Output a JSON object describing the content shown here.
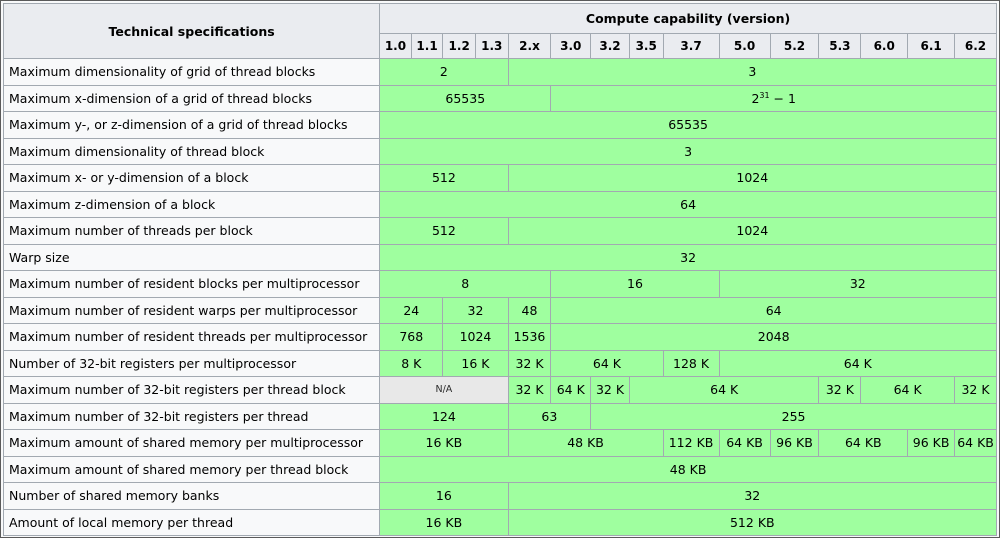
{
  "header": {
    "spec_title": "Technical specifications",
    "group_title": "Compute capability (version)",
    "versions": [
      "1.0",
      "1.1",
      "1.2",
      "1.3",
      "2.x",
      "3.0",
      "3.2",
      "3.5",
      "3.7",
      "5.0",
      "5.2",
      "5.3",
      "6.0",
      "6.1",
      "6.2"
    ]
  },
  "rows": [
    {
      "label": "Maximum dimensionality of grid of thread blocks",
      "cells": [
        {
          "span": 4,
          "text": "2"
        },
        {
          "span": 11,
          "text": "3"
        }
      ]
    },
    {
      "label": "Maximum x-dimension of a grid of thread blocks",
      "cells": [
        {
          "span": 5,
          "text": "65535"
        },
        {
          "span": 10,
          "base": "2",
          "sup": "31",
          "suffix": " − 1"
        }
      ]
    },
    {
      "label": "Maximum y-, or z-dimension of a grid of thread blocks",
      "cells": [
        {
          "span": 15,
          "text": "65535"
        }
      ]
    },
    {
      "label": "Maximum dimensionality of thread block",
      "cells": [
        {
          "span": 15,
          "text": "3"
        }
      ]
    },
    {
      "label": "Maximum x- or y-dimension of a block",
      "cells": [
        {
          "span": 4,
          "text": "512"
        },
        {
          "span": 11,
          "text": "1024"
        }
      ]
    },
    {
      "label": "Maximum z-dimension of a block",
      "cells": [
        {
          "span": 15,
          "text": "64"
        }
      ]
    },
    {
      "label": "Maximum number of threads per block",
      "cells": [
        {
          "span": 4,
          "text": "512"
        },
        {
          "span": 11,
          "text": "1024"
        }
      ]
    },
    {
      "label": "Warp size",
      "cells": [
        {
          "span": 15,
          "text": "32"
        }
      ]
    },
    {
      "label": "Maximum number of resident blocks per multiprocessor",
      "cells": [
        {
          "span": 5,
          "text": "8"
        },
        {
          "span": 4,
          "text": "16"
        },
        {
          "span": 6,
          "text": "32"
        }
      ]
    },
    {
      "label": "Maximum number of resident warps per multiprocessor",
      "cells": [
        {
          "span": 2,
          "text": "24"
        },
        {
          "span": 2,
          "text": "32"
        },
        {
          "span": 1,
          "text": "48"
        },
        {
          "span": 10,
          "text": "64"
        }
      ]
    },
    {
      "label": "Maximum number of resident threads per multiprocessor",
      "cells": [
        {
          "span": 2,
          "text": "768"
        },
        {
          "span": 2,
          "text": "1024"
        },
        {
          "span": 1,
          "text": "1536"
        },
        {
          "span": 10,
          "text": "2048"
        }
      ]
    },
    {
      "label": "Number of 32-bit registers per multiprocessor",
      "cells": [
        {
          "span": 2,
          "text": "8 K"
        },
        {
          "span": 2,
          "text": "16 K"
        },
        {
          "span": 1,
          "text": "32 K"
        },
        {
          "span": 3,
          "text": "64 K"
        },
        {
          "span": 1,
          "text": "128 K"
        },
        {
          "span": 6,
          "text": "64 K"
        }
      ]
    },
    {
      "label": "Maximum number of 32-bit registers per thread block",
      "cells": [
        {
          "span": 4,
          "text": "N/A",
          "na": true
        },
        {
          "span": 1,
          "text": "32 K"
        },
        {
          "span": 1,
          "text": "64 K"
        },
        {
          "span": 1,
          "text": "32 K"
        },
        {
          "span": 4,
          "text": "64 K"
        },
        {
          "span": 1,
          "text": "32 K"
        },
        {
          "span": 2,
          "text": "64 K"
        },
        {
          "span": 1,
          "text": "32 K"
        }
      ]
    },
    {
      "label": "Maximum number of 32-bit registers per thread",
      "cells": [
        {
          "span": 4,
          "text": "124"
        },
        {
          "span": 2,
          "text": "63"
        },
        {
          "span": 9,
          "text": "255"
        }
      ]
    },
    {
      "label": "Maximum amount of shared memory per multiprocessor",
      "cells": [
        {
          "span": 4,
          "text": "16 KB"
        },
        {
          "span": 4,
          "text": "48 KB"
        },
        {
          "span": 1,
          "text": "112 KB"
        },
        {
          "span": 1,
          "text": "64 KB"
        },
        {
          "span": 1,
          "text": "96 KB"
        },
        {
          "span": 2,
          "text": "64 KB"
        },
        {
          "span": 1,
          "text": "96 KB"
        },
        {
          "span": 1,
          "text": "64 KB"
        }
      ]
    },
    {
      "label": "Maximum amount of shared memory per thread block",
      "cells": [
        {
          "span": 15,
          "text": "48 KB"
        }
      ]
    },
    {
      "label": "Number of shared memory banks",
      "cells": [
        {
          "span": 4,
          "text": "16"
        },
        {
          "span": 11,
          "text": "32"
        }
      ]
    },
    {
      "label": "Amount of local memory per thread",
      "cells": [
        {
          "span": 4,
          "text": "16 KB"
        },
        {
          "span": 11,
          "text": "512 KB"
        }
      ]
    }
  ],
  "colors": {
    "supported_green": "#9fff9f",
    "header_gray": "#eaecf0",
    "na_gray": "#e8e8e8",
    "border": "#a2a9b1"
  }
}
